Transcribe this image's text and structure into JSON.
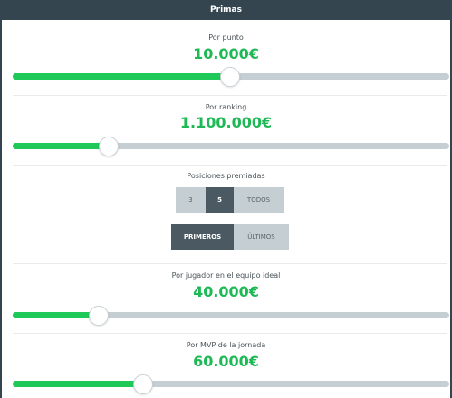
{
  "header": {
    "title": "Primas"
  },
  "por_punto": {
    "label": "Por punto",
    "value": "10.000€",
    "level_percent": 49.8
  },
  "por_ranking": {
    "label": "Por ranking",
    "value": "1.100.000€",
    "level_percent": 22.0
  },
  "posiciones": {
    "label": "Posiciones premiadas",
    "options": [
      "3",
      "5",
      "TODOS"
    ],
    "selected": "5"
  },
  "orden": {
    "options": [
      "PRIMEROS",
      "ÚLTIMOS"
    ],
    "selected": "PRIMEROS"
  },
  "por_jugador": {
    "label": "Por jugador en el equipo ideal",
    "value": "40.000€",
    "level_percent": 19.7
  },
  "por_mvp": {
    "label": "Por MVP de la jornada",
    "value": "60.000€",
    "level_percent": 29.9
  },
  "colors": {
    "header_bg": "#34454f",
    "accent_green": "#1db954",
    "track": "#c5ced2",
    "segment_active": "#4b5a62"
  }
}
